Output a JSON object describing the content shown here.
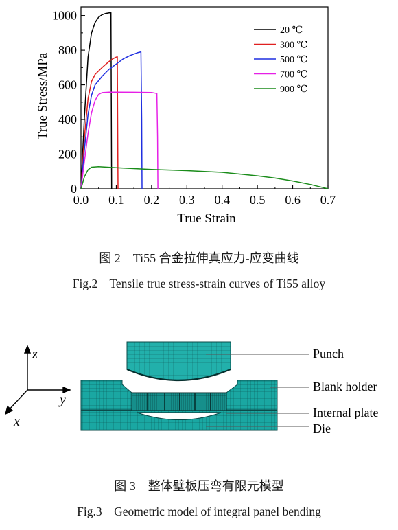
{
  "figure2": {
    "caption_cn": "图 2    Ti55 合金拉伸真应力-应变曲线",
    "caption_en": "Fig.2    Tensile true stress-strain curves of Ti55 alloy"
  },
  "figure3": {
    "caption_cn": "图 3    整体壁板压弯有限元模型",
    "caption_en": "Fig.3    Geometric model of integral panel bending",
    "labels": {
      "punch": "Punch",
      "blank_holder": "Blank holder",
      "internal_plate": "Internal plate",
      "die": "Die"
    },
    "axes": {
      "z": "z",
      "y": "y",
      "x": "x"
    },
    "colors": {
      "mesh": "#1aa7a2",
      "mesh_line": "#0b4b4a",
      "axis": "#000000"
    }
  },
  "chart_data": {
    "type": "line",
    "title": "",
    "xlabel": "True Strain",
    "ylabel": "True Stress/MPa",
    "xlim": [
      0.0,
      0.7
    ],
    "ylim": [
      0,
      1050
    ],
    "x_ticks": [
      "0.0",
      "0.1",
      "0.2",
      "0.3",
      "0.4",
      "0.5",
      "0.6",
      "0.7"
    ],
    "y_ticks": [
      "0",
      "200",
      "400",
      "600",
      "800",
      "1000"
    ],
    "grid": false,
    "legend_position": "top-right",
    "series": [
      {
        "name": "20 ℃",
        "color": "#000000",
        "points": [
          [
            0,
            0
          ],
          [
            0.01,
            420
          ],
          [
            0.02,
            760
          ],
          [
            0.03,
            900
          ],
          [
            0.04,
            960
          ],
          [
            0.05,
            990
          ],
          [
            0.06,
            1005
          ],
          [
            0.07,
            1012
          ],
          [
            0.08,
            1015
          ],
          [
            0.085,
            1016
          ],
          [
            0.086,
            500
          ],
          [
            0.087,
            0
          ]
        ]
      },
      {
        "name": "300 ℃",
        "color": "#e02020",
        "points": [
          [
            0,
            0
          ],
          [
            0.01,
            300
          ],
          [
            0.02,
            520
          ],
          [
            0.03,
            620
          ],
          [
            0.04,
            660
          ],
          [
            0.05,
            680
          ],
          [
            0.06,
            700
          ],
          [
            0.07,
            718
          ],
          [
            0.08,
            735
          ],
          [
            0.09,
            750
          ],
          [
            0.1,
            760
          ],
          [
            0.103,
            762
          ],
          [
            0.104,
            380
          ],
          [
            0.105,
            0
          ]
        ]
      },
      {
        "name": "500 ℃",
        "color": "#1f2fe0",
        "points": [
          [
            0,
            0
          ],
          [
            0.01,
            230
          ],
          [
            0.02,
            430
          ],
          [
            0.03,
            540
          ],
          [
            0.04,
            600
          ],
          [
            0.06,
            650
          ],
          [
            0.08,
            690
          ],
          [
            0.1,
            720
          ],
          [
            0.12,
            750
          ],
          [
            0.14,
            770
          ],
          [
            0.16,
            785
          ],
          [
            0.17,
            790
          ],
          [
            0.172,
            400
          ],
          [
            0.173,
            0
          ]
        ]
      },
      {
        "name": "700 ℃",
        "color": "#e620e6",
        "points": [
          [
            0,
            0
          ],
          [
            0.01,
            160
          ],
          [
            0.02,
            320
          ],
          [
            0.03,
            440
          ],
          [
            0.04,
            510
          ],
          [
            0.05,
            545
          ],
          [
            0.06,
            555
          ],
          [
            0.08,
            558
          ],
          [
            0.1,
            558
          ],
          [
            0.15,
            557
          ],
          [
            0.2,
            556
          ],
          [
            0.215,
            550
          ],
          [
            0.217,
            300
          ],
          [
            0.218,
            0
          ]
        ]
      },
      {
        "name": "900 ℃",
        "color": "#1a8c1a",
        "points": [
          [
            0,
            0
          ],
          [
            0.01,
            70
          ],
          [
            0.02,
            110
          ],
          [
            0.03,
            125
          ],
          [
            0.05,
            128
          ],
          [
            0.1,
            122
          ],
          [
            0.2,
            112
          ],
          [
            0.3,
            105
          ],
          [
            0.4,
            95
          ],
          [
            0.5,
            75
          ],
          [
            0.55,
            62
          ],
          [
            0.6,
            45
          ],
          [
            0.65,
            25
          ],
          [
            0.69,
            5
          ],
          [
            0.7,
            0
          ]
        ]
      }
    ]
  }
}
